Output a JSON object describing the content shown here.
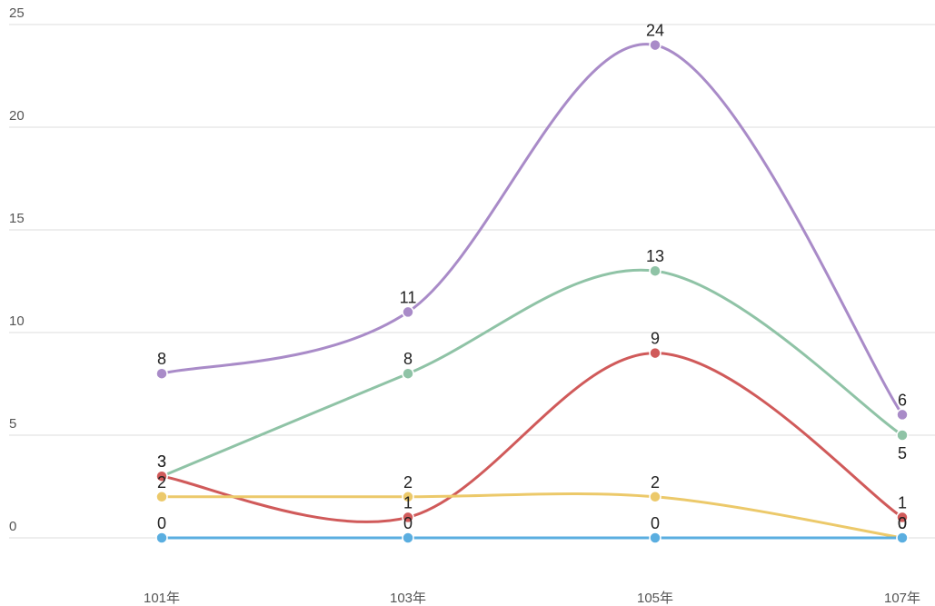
{
  "chart_data": {
    "type": "line",
    "categories": [
      "101年",
      "103年",
      "105年",
      "107年"
    ],
    "series": [
      {
        "color": "#a98bc8",
        "values": [
          8,
          11,
          24,
          6
        ]
      },
      {
        "color": "#8fc3a6",
        "values": [
          3,
          8,
          13,
          5
        ]
      },
      {
        "color": "#d05a5a",
        "values": [
          3,
          1,
          9,
          1
        ]
      },
      {
        "color": "#ecc96a",
        "values": [
          2,
          2,
          2,
          0
        ]
      },
      {
        "color": "#5aaee0",
        "values": [
          0,
          0,
          0,
          0
        ]
      }
    ],
    "ylim": [
      0,
      25
    ],
    "yticks": [
      0,
      5,
      10,
      15,
      20,
      25
    ],
    "grid": true,
    "smooth": true
  }
}
